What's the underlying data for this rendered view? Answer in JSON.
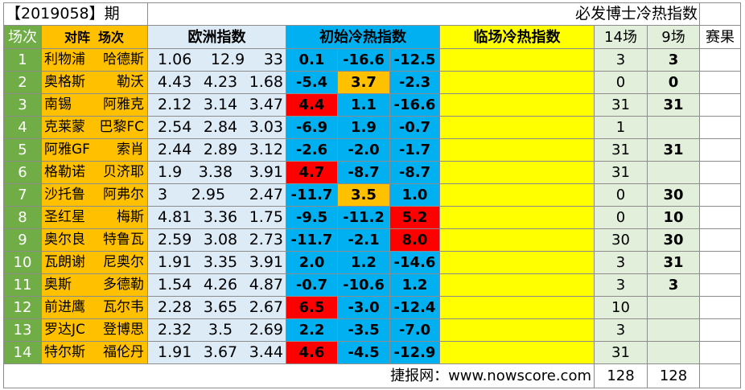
{
  "title": {
    "period_label": "【2019058】期",
    "subtitle": "必发博士冷热指数"
  },
  "headers": {
    "index": "场次",
    "teams_home": "对阵",
    "teams_away": "场次",
    "euro": "欧洲指数",
    "initial": "初始冷热指数",
    "live": "临场冷热指数",
    "c14": "14场",
    "c9": "9场",
    "result": "赛果"
  },
  "colors": {
    "index_green": "#70ad47",
    "team_orange": "#ffc000",
    "euro_lightblue": "#ddebf7",
    "initial_blue": "#00b0f0",
    "hot_red": "#ff0000",
    "warm_orange": "#ffc000",
    "live_yellow": "#ffff00",
    "count_lightgreen": "#e2efda"
  },
  "rows": [
    {
      "idx": "1",
      "home": "利物浦",
      "away": "哈德斯",
      "e1": "1.06",
      "e2": "12.9",
      "e3": "33",
      "h1": {
        "v": "0.1",
        "c": ""
      },
      "h2": {
        "v": "-16.6",
        "c": ""
      },
      "h3": {
        "v": "-12.5",
        "c": ""
      },
      "c14": "3",
      "c9": "3",
      "res": ""
    },
    {
      "idx": "2",
      "home": "奥格斯",
      "away": "勒沃",
      "e1": "4.43",
      "e2": "4.23",
      "e3": "1.68",
      "h1": {
        "v": "-5.4",
        "c": ""
      },
      "h2": {
        "v": "3.7",
        "c": "orange"
      },
      "h3": {
        "v": "-2.3",
        "c": ""
      },
      "c14": "0",
      "c9": "0",
      "res": ""
    },
    {
      "idx": "3",
      "home": "南锡",
      "away": "阿雅克",
      "e1": "2.12",
      "e2": "3.14",
      "e3": "3.47",
      "h1": {
        "v": "4.4",
        "c": "red"
      },
      "h2": {
        "v": "1.1",
        "c": ""
      },
      "h3": {
        "v": "-16.6",
        "c": ""
      },
      "c14": "31",
      "c9": "31",
      "res": ""
    },
    {
      "idx": "4",
      "home": "克莱蒙",
      "away": "巴黎FC",
      "e1": "2.54",
      "e2": "2.84",
      "e3": "3.03",
      "h1": {
        "v": "-6.9",
        "c": ""
      },
      "h2": {
        "v": "1.9",
        "c": ""
      },
      "h3": {
        "v": "-0.7",
        "c": ""
      },
      "c14": "1",
      "c9": "",
      "res": ""
    },
    {
      "idx": "5",
      "home": "阿雅GF",
      "away": "索肖",
      "e1": "2.44",
      "e2": "2.89",
      "e3": "3.12",
      "h1": {
        "v": "-2.6",
        "c": ""
      },
      "h2": {
        "v": "-2.0",
        "c": ""
      },
      "h3": {
        "v": "-1.7",
        "c": ""
      },
      "c14": "31",
      "c9": "31",
      "res": ""
    },
    {
      "idx": "6",
      "home": "格勒诺",
      "away": "贝济耶",
      "e1": "1.9",
      "e2": "3.38",
      "e3": "3.91",
      "h1": {
        "v": "4.7",
        "c": "red"
      },
      "h2": {
        "v": "-8.7",
        "c": ""
      },
      "h3": {
        "v": "-8.7",
        "c": ""
      },
      "c14": "31",
      "c9": "",
      "res": ""
    },
    {
      "idx": "7",
      "home": "沙托鲁",
      "away": "阿弗尔",
      "e1": "3",
      "e2": "2.95",
      "e3": "2.47",
      "h1": {
        "v": "-11.7",
        "c": ""
      },
      "h2": {
        "v": "3.5",
        "c": "orange"
      },
      "h3": {
        "v": "1.0",
        "c": ""
      },
      "c14": "0",
      "c9": "30",
      "res": ""
    },
    {
      "idx": "8",
      "home": "圣红星",
      "away": "梅斯",
      "e1": "4.81",
      "e2": "3.36",
      "e3": "1.75",
      "h1": {
        "v": "-9.5",
        "c": ""
      },
      "h2": {
        "v": "-11.2",
        "c": ""
      },
      "h3": {
        "v": "5.2",
        "c": "red"
      },
      "c14": "0",
      "c9": "10",
      "res": ""
    },
    {
      "idx": "9",
      "home": "奥尔良",
      "away": "特鲁瓦",
      "e1": "2.59",
      "e2": "3.08",
      "e3": "2.73",
      "h1": {
        "v": "-11.7",
        "c": ""
      },
      "h2": {
        "v": "-2.1",
        "c": ""
      },
      "h3": {
        "v": "8.0",
        "c": "red"
      },
      "c14": "30",
      "c9": "30",
      "res": ""
    },
    {
      "idx": "10",
      "home": "瓦朗谢",
      "away": "尼奥尔",
      "e1": "1.91",
      "e2": "3.35",
      "e3": "3.91",
      "h1": {
        "v": "2.0",
        "c": ""
      },
      "h2": {
        "v": "1.2",
        "c": ""
      },
      "h3": {
        "v": "-14.6",
        "c": ""
      },
      "c14": "3",
      "c9": "31",
      "res": ""
    },
    {
      "idx": "11",
      "home": "奥斯",
      "away": "多德勒",
      "e1": "1.54",
      "e2": "4.26",
      "e3": "4.87",
      "h1": {
        "v": "-0.7",
        "c": ""
      },
      "h2": {
        "v": "-10.6",
        "c": ""
      },
      "h3": {
        "v": "1.2",
        "c": ""
      },
      "c14": "3",
      "c9": "3",
      "res": ""
    },
    {
      "idx": "12",
      "home": "前进鹰",
      "away": "瓦尔韦",
      "e1": "2.28",
      "e2": "3.65",
      "e3": "2.67",
      "h1": {
        "v": "6.5",
        "c": "red"
      },
      "h2": {
        "v": "-3.0",
        "c": ""
      },
      "h3": {
        "v": "-12.4",
        "c": ""
      },
      "c14": "10",
      "c9": "",
      "res": ""
    },
    {
      "idx": "13",
      "home": "罗达JC",
      "away": "登博思",
      "e1": "2.32",
      "e2": "3.5",
      "e3": "2.69",
      "h1": {
        "v": "2.2",
        "c": ""
      },
      "h2": {
        "v": "-3.5",
        "c": ""
      },
      "h3": {
        "v": "-7.0",
        "c": ""
      },
      "c14": "3",
      "c9": "",
      "res": ""
    },
    {
      "idx": "14",
      "home": "特尔斯",
      "away": "福伦丹",
      "e1": "1.91",
      "e2": "3.67",
      "e3": "3.44",
      "h1": {
        "v": "4.6",
        "c": "red"
      },
      "h2": {
        "v": "-4.5",
        "c": ""
      },
      "h3": {
        "v": "-12.9",
        "c": ""
      },
      "c14": "31",
      "c9": "",
      "res": ""
    }
  ],
  "footer": {
    "source": "捷报网：www.nowscore.com",
    "total14": "128",
    "total9": "128"
  }
}
